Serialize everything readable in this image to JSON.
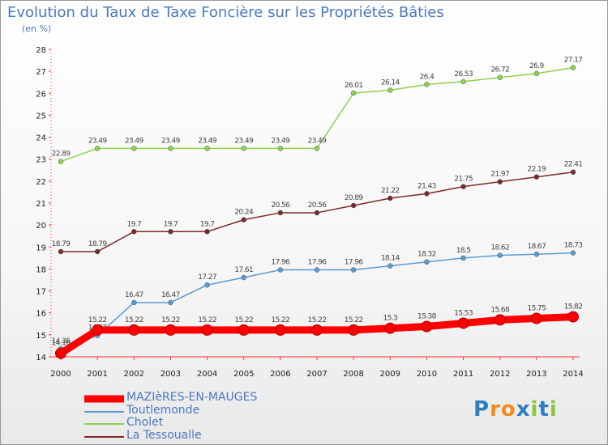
{
  "chart_data": {
    "type": "line",
    "title": "Evolution du Taux de Taxe Foncière sur les Propriétés Bâties",
    "unit_label": "(en %)",
    "categories": [
      "2000",
      "2001",
      "2002",
      "2003",
      "2004",
      "2005",
      "2006",
      "2007",
      "2008",
      "2009",
      "2010",
      "2011",
      "2012",
      "2013",
      "2014"
    ],
    "ylim": [
      14,
      28
    ],
    "yticks": [
      "14",
      "15",
      "16",
      "17",
      "18",
      "19",
      "20",
      "21",
      "22",
      "23",
      "24",
      "25",
      "26",
      "27",
      "28"
    ],
    "grid": false,
    "legend_position": "bottom-left",
    "series": [
      {
        "name": "MAZIèRES-EN-MAUGES",
        "color": "#ff0000",
        "values": [
          14.16,
          15.22,
          15.22,
          15.22,
          15.22,
          15.22,
          15.22,
          15.22,
          15.22,
          15.3,
          15.38,
          15.53,
          15.68,
          15.75,
          15.82
        ],
        "labels": [
          "14.16",
          "15.22",
          "15.22",
          "15.22",
          "15.22",
          "15.22",
          "15.22",
          "15.22",
          "15.22",
          "15.3",
          "15.38",
          "15.53",
          "15.68",
          "15.75",
          "15.82"
        ]
      },
      {
        "name": "Toutlemonde",
        "color": "#5b9bd5",
        "values": [
          14.36,
          14.97,
          16.47,
          16.47,
          17.27,
          17.61,
          17.96,
          17.96,
          17.96,
          18.14,
          18.32,
          18.5,
          18.62,
          18.67,
          18.73
        ],
        "labels": [
          "14.36",
          "14.97",
          "16.47",
          "16.47",
          "17.27",
          "17.61",
          "17.96",
          "17.96",
          "17.96",
          "18.14",
          "18.32",
          "18.5",
          "18.62",
          "18.67",
          "18.73"
        ]
      },
      {
        "name": "Cholet",
        "color": "#8fd14f",
        "values": [
          22.89,
          23.49,
          23.49,
          23.49,
          23.49,
          23.49,
          23.49,
          23.49,
          26.01,
          26.14,
          26.4,
          26.53,
          26.72,
          26.9,
          27.17
        ],
        "labels": [
          "22.89",
          "23.49",
          "23.49",
          "23.49",
          "23.49",
          "23.49",
          "23.49",
          "23.49",
          "26.01",
          "26.14",
          "26.4",
          "26.53",
          "26.72",
          "26.9",
          "27.17"
        ]
      },
      {
        "name": "La Tessoualle",
        "color": "#7b2a2a",
        "values": [
          18.79,
          18.79,
          19.7,
          19.7,
          19.7,
          20.24,
          20.56,
          20.56,
          20.89,
          21.22,
          21.43,
          21.75,
          21.97,
          22.19,
          22.41
        ],
        "labels": [
          "18.79",
          "18.79",
          "19.7",
          "19.7",
          "19.7",
          "20.24",
          "20.56",
          "20.56",
          "20.89",
          "21.22",
          "21.43",
          "21.75",
          "21.97",
          "22.19",
          "22.41"
        ]
      }
    ]
  },
  "logo": {
    "letters": [
      {
        "ch": "P",
        "color": "#2c7fc1"
      },
      {
        "ch": "r",
        "color": "#f28c1e"
      },
      {
        "ch": "o",
        "color": "#f28c1e"
      },
      {
        "ch": "x",
        "color": "#2c7fc1"
      },
      {
        "ch": "i",
        "color": "#8cc63f"
      },
      {
        "ch": "t",
        "color": "#2c7fc1"
      },
      {
        "ch": "i",
        "color": "#8cc63f"
      }
    ]
  }
}
